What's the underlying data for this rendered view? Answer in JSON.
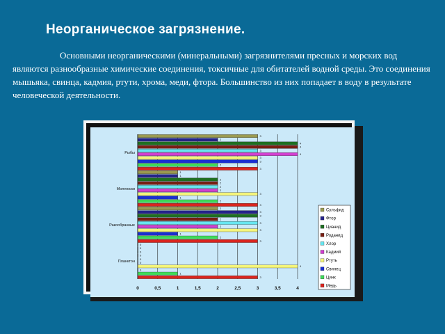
{
  "slide": {
    "title": "Неорганическое загрязнение.",
    "paragraph": "Основными неорганическими (минеральными) загрязнителями пресных и морских вод являются разнообразные химические соединения, токсичные для обитателей водной среды. Это соединения мышьяка, свинца, кадмия, ртути, хрома, меди, фтора. Большинство из них попадает в воду в результате человеческой деятельности."
  },
  "colors": {
    "background": "#0a6a97",
    "plot_area": "#cbe9f9",
    "Сульфид": "#9a9a50",
    "Фтор": "#24238a",
    "Цианид": "#1f6f22",
    "Роданид": "#7a1e12",
    "Хлор": "#66e6f0",
    "Кадмий": "#d23fd0",
    "Ртуть": "#f5f57a",
    "Свинец": "#1a2fcf",
    "Цинк": "#3fdc5a",
    "Медь": "#d9251e"
  },
  "chart_data": {
    "type": "bar",
    "orientation": "horizontal",
    "categories": [
      "Рыбы",
      "Моллюски",
      "Ракообразные",
      "Планктон"
    ],
    "series": [
      {
        "name": "Сульфид",
        "values": [
          3,
          1,
          2,
          0
        ]
      },
      {
        "name": "Фтор",
        "values": [
          2,
          1,
          3,
          0
        ]
      },
      {
        "name": "Цианид",
        "values": [
          4,
          2,
          3,
          0
        ]
      },
      {
        "name": "Роданид",
        "values": [
          4,
          2,
          2,
          0
        ]
      },
      {
        "name": "Хлор",
        "values": [
          3,
          2,
          3,
          0
        ]
      },
      {
        "name": "Кадмий",
        "values": [
          4,
          2,
          2,
          0
        ]
      },
      {
        "name": "Ртуть",
        "values": [
          3,
          3,
          3,
          4
        ]
      },
      {
        "name": "Свинец",
        "values": [
          3,
          1,
          1,
          0
        ]
      },
      {
        "name": "Цинк",
        "values": [
          2,
          2,
          2,
          1
        ]
      },
      {
        "name": "Медь",
        "values": [
          3,
          3,
          3,
          3
        ]
      }
    ],
    "legend_order": [
      "Сульфид",
      "Фтор",
      "Цианид",
      "Роданид",
      "Хлор",
      "Кадмий",
      "Ртуть",
      "Свинец",
      "Цинк",
      "Медь"
    ],
    "xticks": [
      "0",
      "0,5",
      "1",
      "1,5",
      "2",
      "2,5",
      "3",
      "3,5",
      "4"
    ],
    "xlim": [
      0,
      4
    ],
    "grid": true,
    "legend_position": "right"
  }
}
